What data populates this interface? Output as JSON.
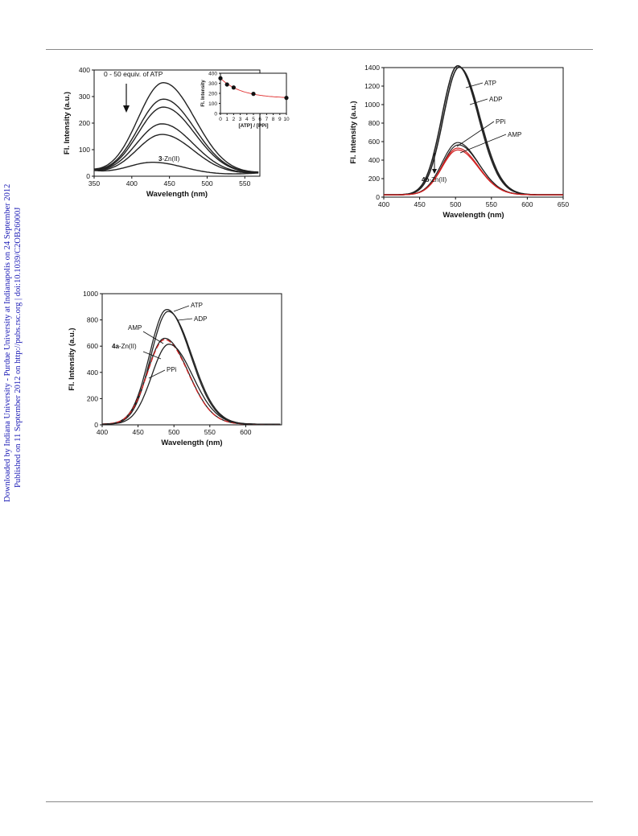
{
  "sidebar": {
    "line1": "Downloaded by Indiana University - Purdue University at Indianapolis on 24 September 2012",
    "line2": "Published on 11 September 2012 on http://pubs.rsc.org | doi:10.1039/C2OB26000J"
  },
  "chart_data": [
    {
      "type": "line",
      "id": "chart1",
      "xlabel": "Wavelength (nm)",
      "ylabel": "Fl. Intensity (a.u.)",
      "xlim": [
        350,
        570
      ],
      "ylim": [
        0,
        400
      ],
      "xticks": [
        350,
        400,
        450,
        500,
        550
      ],
      "yticks": [
        0,
        100,
        200,
        300,
        400
      ],
      "annotations": {
        "top": "0 - 50 equiv. of ATP",
        "bottom_bold": "3",
        "bottom_rest": "-Zn(II)"
      },
      "peaks": [
        350,
        288,
        258,
        195,
        155,
        50
      ],
      "peak_x": [
        442,
        442,
        442,
        440,
        440,
        428
      ],
      "inset": {
        "type": "scatter",
        "xlabel": "[ATP] / [PPi]",
        "ylabel": "Fl. Intensity",
        "xlim": [
          0,
          10
        ],
        "ylim": [
          0,
          400
        ],
        "xticks": [
          "0",
          "1",
          "2",
          "3",
          "4",
          "5",
          "6",
          "7",
          "8",
          "9",
          "10"
        ],
        "yticks": [
          "0",
          "100",
          "200",
          "300",
          "400"
        ],
        "x": [
          0,
          1,
          2,
          5,
          10
        ],
        "y": [
          350,
          288,
          258,
          195,
          155
        ]
      }
    },
    {
      "type": "line",
      "id": "chart2",
      "xlabel": "Wavelength (nm)",
      "ylabel": "Fl. Intensity (a.u.)",
      "xlim": [
        400,
        650
      ],
      "ylim": [
        0,
        1400
      ],
      "xticks": [
        400,
        450,
        500,
        550,
        600,
        650
      ],
      "yticks": [
        0,
        200,
        400,
        600,
        800,
        1000,
        1200,
        1400
      ],
      "series": [
        {
          "name": "ATP",
          "peak": 1420,
          "peak_x": 503,
          "color": "#222222"
        },
        {
          "name": "ADP",
          "peak": 1405,
          "peak_x": 505,
          "color": "#222222"
        },
        {
          "name": "PPi",
          "peak": 590,
          "peak_x": 503,
          "color": "#222222"
        },
        {
          "name": "AMP",
          "peak": 565,
          "peak_x": 504,
          "color": "#222222"
        },
        {
          "name": "",
          "peak": 530,
          "peak_x": 503,
          "color": "#d02020"
        },
        {
          "name": "",
          "peak": 510,
          "peak_x": 503,
          "color": "#d02020"
        }
      ],
      "annotations": {
        "label_bold": "4b",
        "label_rest": "-Zn(II)"
      }
    },
    {
      "type": "line",
      "id": "chart3",
      "xlabel": "Wavelength (nm)",
      "ylabel": "Fl. Intensity (a.u.)",
      "xlim": [
        400,
        650
      ],
      "ylim": [
        0,
        1000
      ],
      "xticks": [
        400,
        450,
        500,
        550,
        600
      ],
      "yticks": [
        0,
        200,
        400,
        600,
        800,
        1000
      ],
      "series": [
        {
          "name": "ATP",
          "peak": 880,
          "peak_x": 490,
          "color": "#222222"
        },
        {
          "name": "ADP",
          "peak": 865,
          "peak_x": 492,
          "color": "#222222"
        },
        {
          "name": "AMP",
          "peak": 660,
          "peak_x": 487,
          "color": "#222222"
        },
        {
          "name": "",
          "peak": 650,
          "peak_x": 487,
          "color": "#d02020"
        },
        {
          "name": "PPi",
          "peak": 615,
          "peak_x": 493,
          "color": "#222222"
        }
      ],
      "annotations": {
        "label_bold": "4a",
        "label_rest": "-Zn(II)"
      }
    }
  ]
}
